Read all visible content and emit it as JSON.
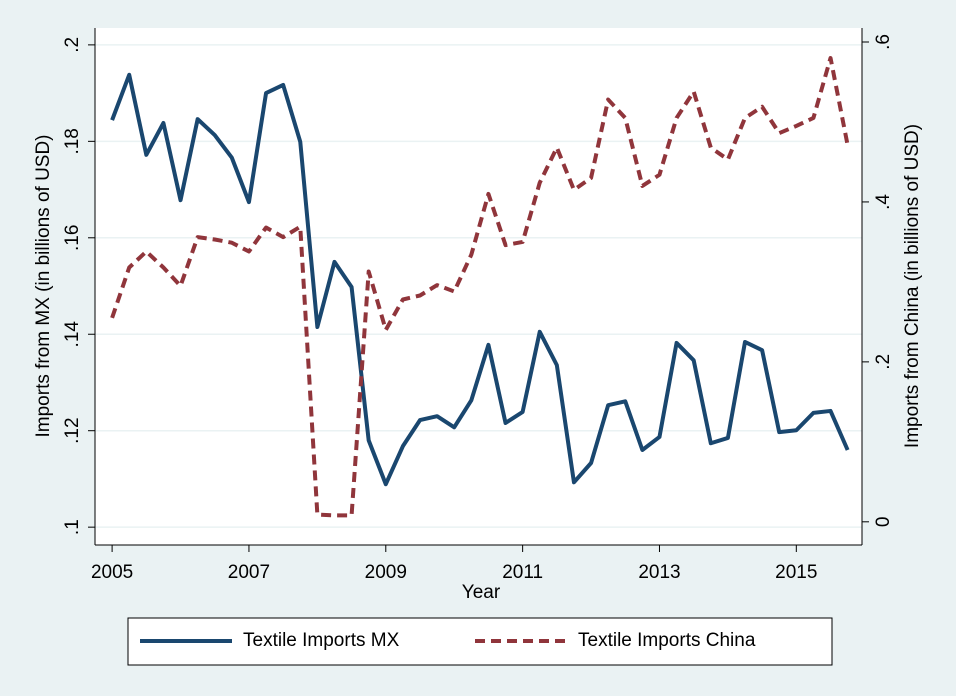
{
  "chart_data": {
    "type": "line",
    "x_label": "Year",
    "y_label": "Imports from MX (in billions of USD)",
    "y2_label": "Imports from China (in billions of USD)",
    "x": [
      2005,
      2005.25,
      2005.5,
      2005.75,
      2006,
      2006.25,
      2006.5,
      2006.75,
      2007,
      2007.25,
      2007.5,
      2007.75,
      2008,
      2008.25,
      2008.5,
      2008.75,
      2009,
      2009.25,
      2009.5,
      2009.75,
      2010,
      2010.25,
      2010.5,
      2010.75,
      2011,
      2011.25,
      2011.5,
      2011.75,
      2012,
      2012.25,
      2012.5,
      2012.75,
      2013,
      2013.25,
      2013.5,
      2013.75,
      2014,
      2014.25,
      2014.5,
      2014.75,
      2015,
      2015.25,
      2015.5,
      2015.75
    ],
    "series": [
      {
        "name": "Textile Imports MX",
        "color": "#1a476f",
        "style": "solid",
        "values": [
          0.1844,
          0.1938,
          0.1772,
          0.1838,
          0.1678,
          0.1846,
          0.1813,
          0.1766,
          0.1674,
          0.19,
          0.1917,
          0.1799,
          0.1415,
          0.155,
          0.1498,
          0.118,
          0.1089,
          0.1168,
          0.1222,
          0.123,
          0.1207,
          0.1263,
          0.1378,
          0.1216,
          0.1239,
          0.1405,
          0.1336,
          0.1093,
          0.1133,
          0.1253,
          0.1261,
          0.116,
          0.1187,
          0.1382,
          0.1346,
          0.1174,
          0.1185,
          0.1384,
          0.1367,
          0.1197,
          0.1201,
          0.1237,
          0.1241,
          0.116
        ]
      },
      {
        "name": "Textile Imports China",
        "color": "#90353b",
        "style": "dashed",
        "axis": "y2",
        "values": [
          0.255,
          0.318,
          0.338,
          0.318,
          0.295,
          0.356,
          0.353,
          0.349,
          0.338,
          0.368,
          0.356,
          0.369,
          0.009,
          0.008,
          0.008,
          0.313,
          0.24,
          0.278,
          0.283,
          0.296,
          0.288,
          0.334,
          0.41,
          0.346,
          0.35,
          0.424,
          0.468,
          0.415,
          0.43,
          0.528,
          0.505,
          0.42,
          0.434,
          0.505,
          0.538,
          0.468,
          0.453,
          0.505,
          0.519,
          0.486,
          0.495,
          0.505,
          0.58,
          0.471
        ]
      }
    ],
    "xlim": [
      2004.75,
      2015.96
    ],
    "xticks": [
      2005,
      2007,
      2009,
      2011,
      2013,
      2015
    ],
    "ylim": [
      0.0963,
      0.2035
    ],
    "yticks": [
      {
        "value": 0.1,
        "label": ".1"
      },
      {
        "value": 0.12,
        "label": ".12"
      },
      {
        "value": 0.14,
        "label": ".14"
      },
      {
        "value": 0.16,
        "label": ".16"
      },
      {
        "value": 0.18,
        "label": ".18"
      },
      {
        "value": 0.2,
        "label": ".2"
      }
    ],
    "y2lim": [
      -0.029,
      0.6175
    ],
    "y2ticks": [
      0,
      {
        "value": 0.2,
        "label": ".2"
      },
      {
        "value": 0.4,
        "label": ".4"
      },
      {
        "value": 0.6,
        "label": ".6"
      }
    ],
    "grid": true,
    "legend": "bottom"
  }
}
